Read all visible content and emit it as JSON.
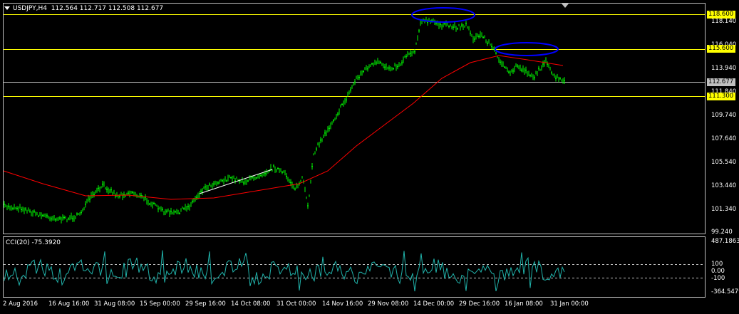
{
  "header": {
    "symbol_tf": "USDJPY,H4",
    "ohlc": "112.564 112.717 112.508 112.677"
  },
  "cci": {
    "title": "CCI(20) -75.3920",
    "axis": [
      "487.1863",
      "100",
      "0.00",
      "-100",
      "-364.5479"
    ]
  },
  "price_axis": [
    "118.140",
    "116.040",
    "113.940",
    "111.840",
    "109.740",
    "107.640",
    "105.540",
    "103.440",
    "101.340",
    "99.240"
  ],
  "levels": {
    "l1": "118.600",
    "l2": "115.600",
    "current": "112.677",
    "l3": "111.300"
  },
  "time_axis": [
    "2 Aug 2016",
    "16 Aug 16:00",
    "31 Aug 08:00",
    "15 Sep 00:00",
    "29 Sep 16:00",
    "14 Oct 08:00",
    "31 Oct 00:00",
    "14 Nov 16:00",
    "29 Nov 08:00",
    "14 Dec 00:00",
    "29 Dec 16:00",
    "16 Jan 08:00",
    "31 Jan 00:00"
  ],
  "colors": {
    "price": "#00ff00",
    "ma": "#ff0000",
    "cci": "#20b2aa",
    "level": "#ffff00",
    "ellipse": "#0000ff",
    "trend": "#ffffff",
    "grid": "#c0c0c0"
  }
}
